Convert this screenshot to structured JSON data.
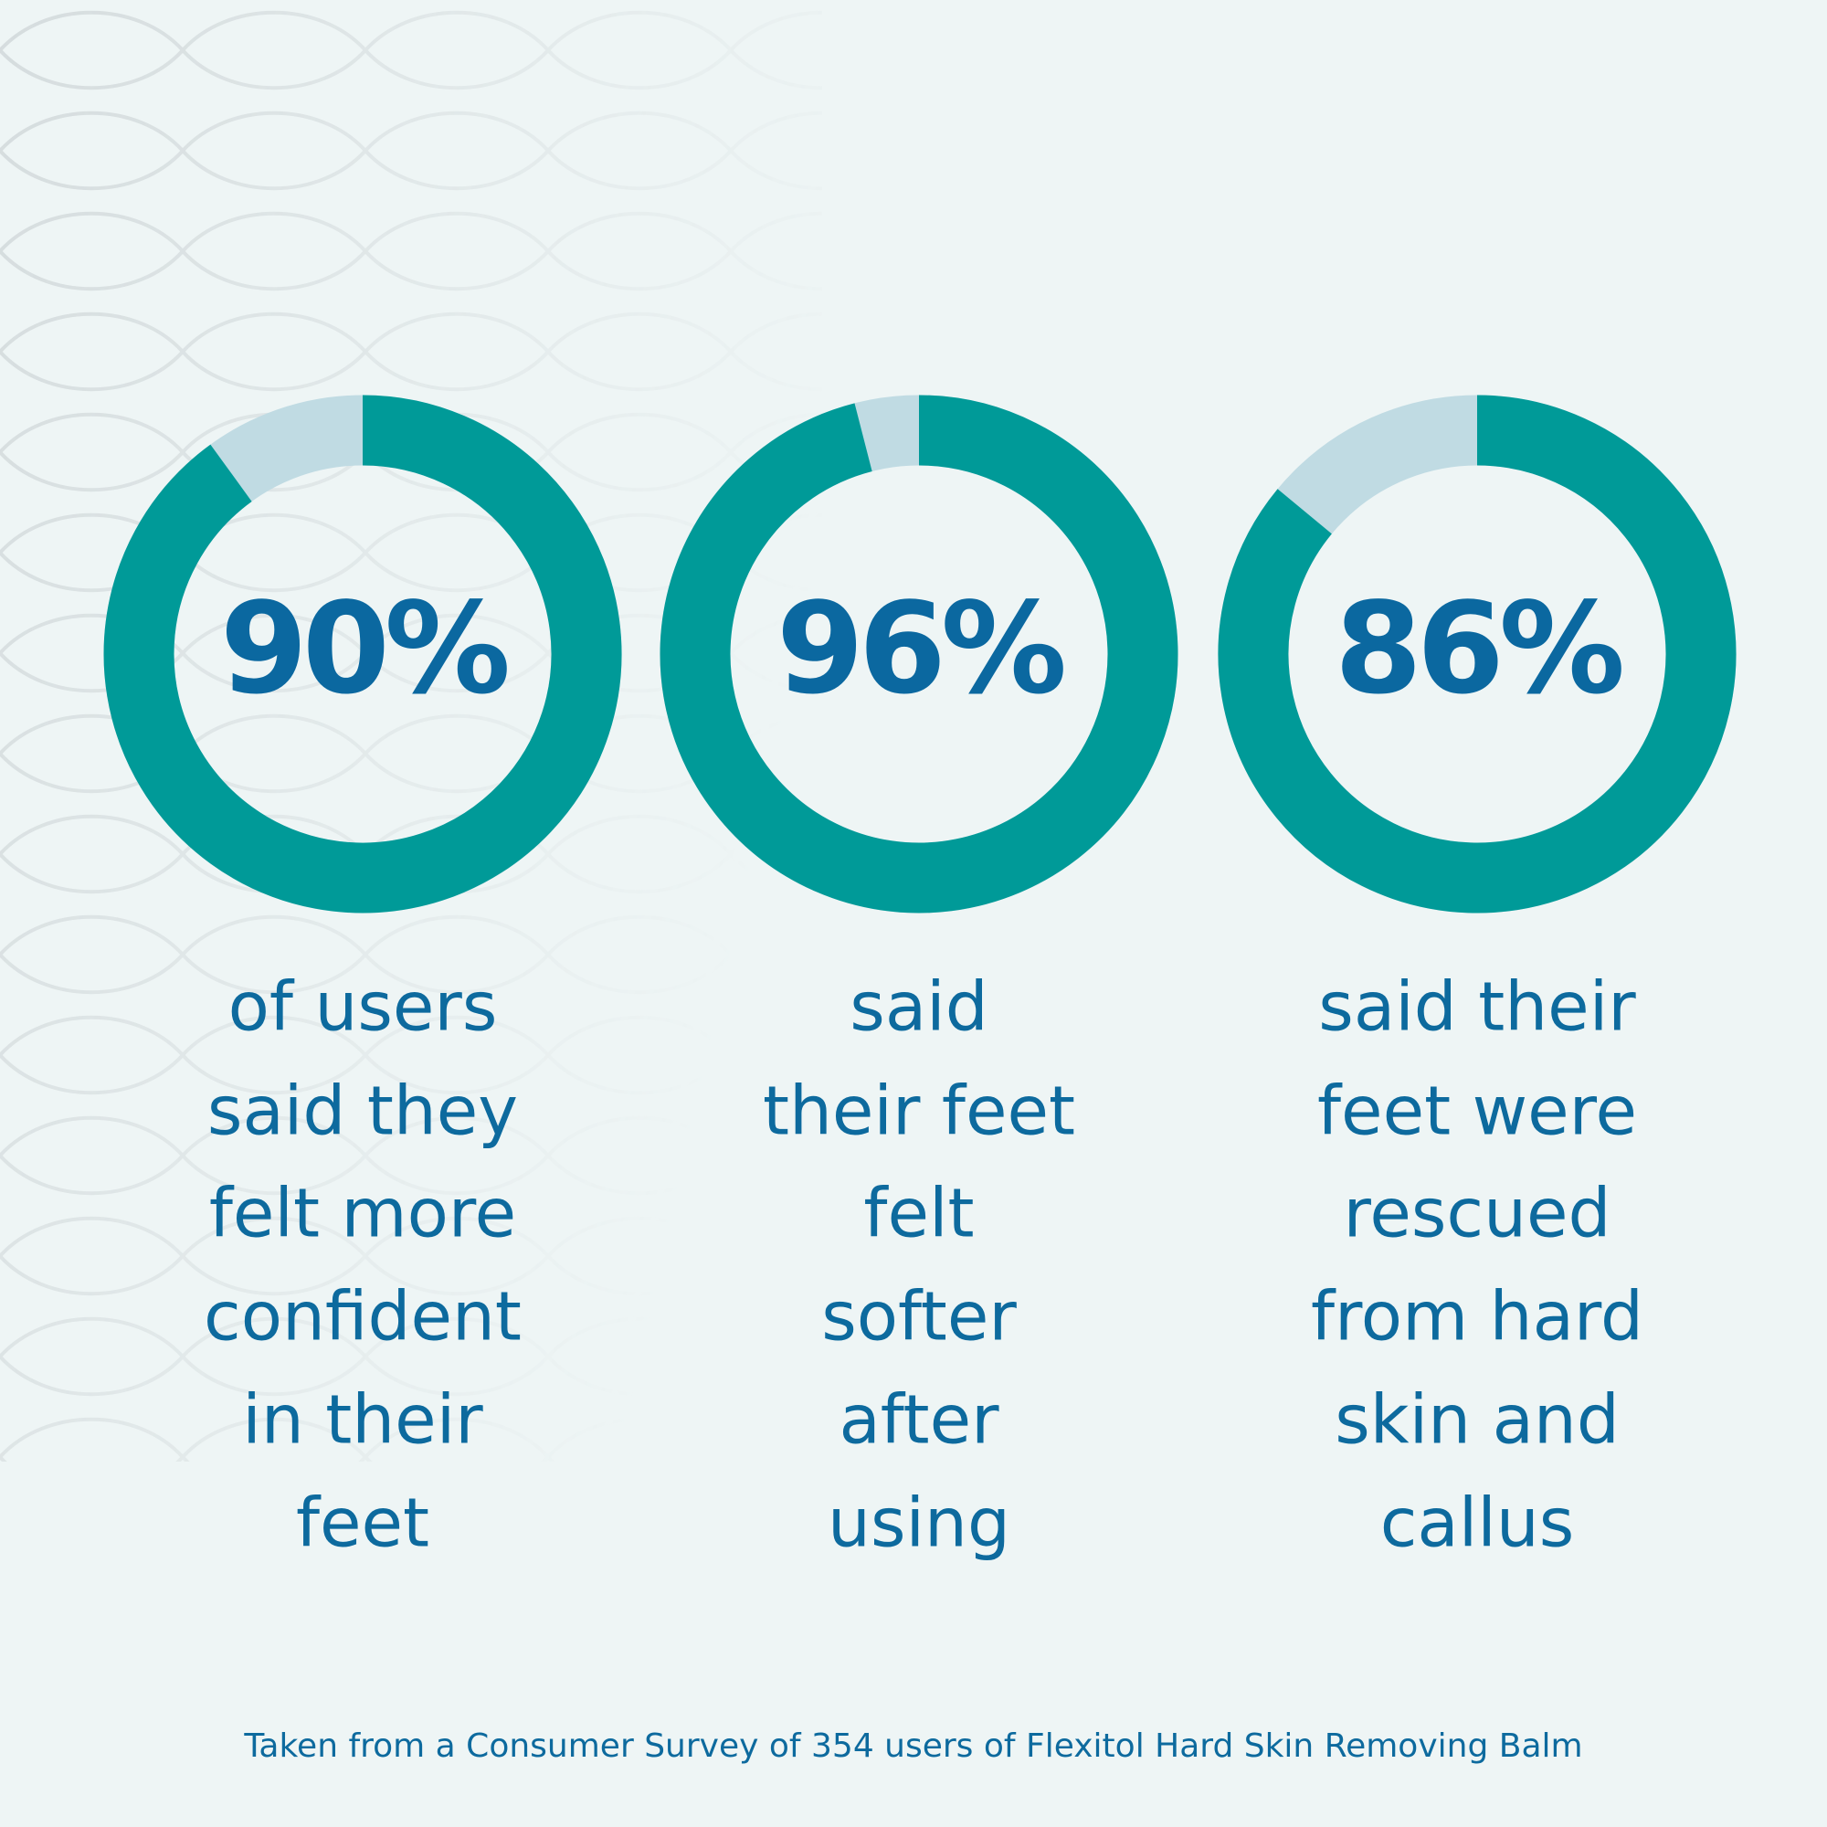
{
  "chart_data": [
    {
      "type": "donut",
      "values": [
        90
      ],
      "value_labels": [
        "90%"
      ],
      "ylim": [
        0,
        100
      ],
      "color": "#009a98",
      "track_color": "#c0dbe3",
      "caption": [
        "of users",
        "said they",
        "felt more",
        "confident",
        "in their",
        "feet"
      ]
    },
    {
      "type": "donut",
      "values": [
        96
      ],
      "value_labels": [
        "96%"
      ],
      "ylim": [
        0,
        100
      ],
      "color": "#009a98",
      "track_color": "#c0dbe3",
      "caption": [
        "said",
        "their feet",
        "felt",
        "softer",
        "after",
        "using"
      ]
    },
    {
      "type": "donut",
      "values": [
        86
      ],
      "value_labels": [
        "86%"
      ],
      "ylim": [
        0,
        100
      ],
      "color": "#009a98",
      "track_color": "#c0dbe3",
      "caption": [
        "said their",
        "feet were",
        "rescued",
        "from hard",
        "skin and",
        "callus"
      ]
    }
  ],
  "note": "Taken from a Consumer Survey of 354 users of Flexitol Hard Skin Removing Balm"
}
